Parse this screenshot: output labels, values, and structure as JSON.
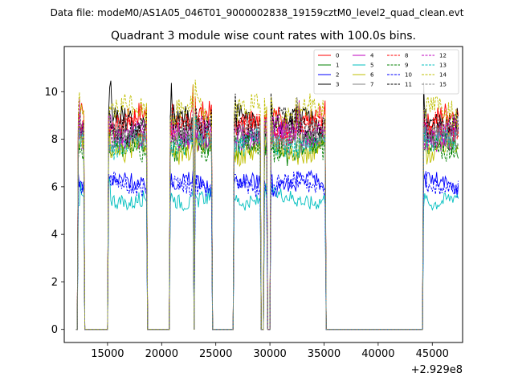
{
  "chart_data": {
    "type": "line",
    "suptitle": "Data file: modeM0/AS1A05_046T01_9000002838_19159cztM0_level2_quad_clean.evt",
    "title": "Quadrant 3 module wise count rates with 100.0s bins.",
    "xlabel": "",
    "ylabel": "",
    "x_offset_label": "+2.929e8",
    "xlim": [
      11000,
      47800
    ],
    "ylim": [
      -0.55,
      11.9
    ],
    "xticks": [
      15000,
      20000,
      25000,
      30000,
      35000,
      40000,
      45000
    ],
    "xtick_labels": [
      "15000",
      "20000",
      "25000",
      "30000",
      "35000",
      "40000",
      "45000"
    ],
    "yticks": [
      0,
      2,
      4,
      6,
      8,
      10
    ],
    "ytick_labels": [
      "0",
      "2",
      "4",
      "6",
      "8",
      "10"
    ],
    "legend_location": "upper-right",
    "bin_width_s": 100,
    "active_intervals": [
      [
        12300,
        12800
      ],
      [
        15100,
        18600
      ],
      [
        20800,
        22950
      ],
      [
        23100,
        24600
      ],
      [
        26700,
        29100
      ],
      [
        29450,
        29750
      ],
      [
        30100,
        32500
      ],
      [
        32600,
        35100
      ],
      [
        44200,
        47400
      ]
    ],
    "series": [
      {
        "name": "0",
        "color": "#ff0000",
        "style": "solid",
        "mean": 8.8
      },
      {
        "name": "1",
        "color": "#008000",
        "style": "solid",
        "mean": 7.6
      },
      {
        "name": "2",
        "color": "#0000ff",
        "style": "solid",
        "mean": 6.1
      },
      {
        "name": "3",
        "color": "#000000",
        "style": "solid",
        "mean": 8.7
      },
      {
        "name": "4",
        "color": "#bf00bf",
        "style": "solid",
        "mean": 8.2
      },
      {
        "name": "5",
        "color": "#00bfbf",
        "style": "solid",
        "mean": 5.5
      },
      {
        "name": "6",
        "color": "#bfbf00",
        "style": "solid",
        "mean": 7.6
      },
      {
        "name": "7",
        "color": "#808080",
        "style": "solid",
        "mean": 8.0
      },
      {
        "name": "8",
        "color": "#ff0000",
        "style": "dashed",
        "mean": 8.4
      },
      {
        "name": "9",
        "color": "#008000",
        "style": "dashed",
        "mean": 7.7
      },
      {
        "name": "10",
        "color": "#0000ff",
        "style": "dashed",
        "mean": 6.1
      },
      {
        "name": "11",
        "color": "#000000",
        "style": "dashed",
        "mean": 8.6
      },
      {
        "name": "12",
        "color": "#bf00bf",
        "style": "dashed",
        "mean": 8.3
      },
      {
        "name": "13",
        "color": "#00bfbf",
        "style": "dashed",
        "mean": 7.8
      },
      {
        "name": "14",
        "color": "#bfbf00",
        "style": "dashed",
        "mean": 9.1
      },
      {
        "name": "15",
        "color": "#808080",
        "style": "dashed",
        "mean": 8.2
      }
    ]
  }
}
